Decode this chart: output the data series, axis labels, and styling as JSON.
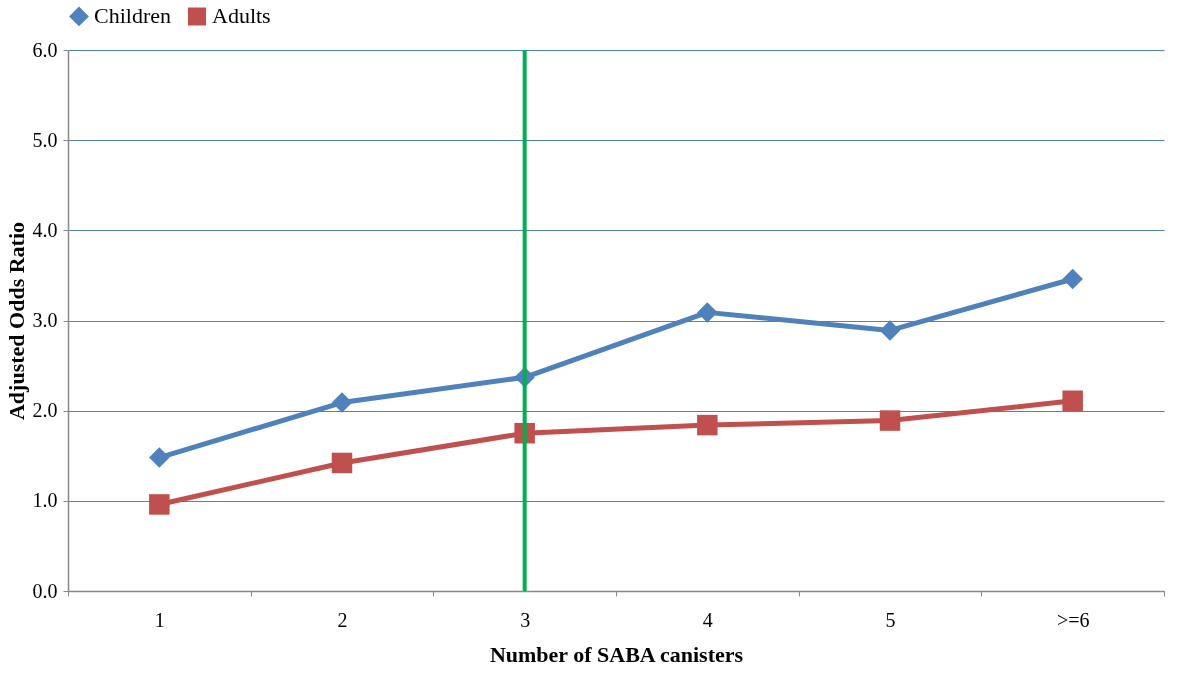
{
  "chart_data": {
    "type": "line",
    "xlabel": "Number of SABA canisters",
    "ylabel": "Adjusted Odds Ratio",
    "categories": [
      "1",
      "2",
      "3",
      "4",
      "5",
      ">=6"
    ],
    "series": [
      {
        "name": "Children",
        "color": "#4f81bd",
        "marker": "diamond",
        "values": [
          1.48,
          2.09,
          2.37,
          3.09,
          2.89,
          3.46
        ]
      },
      {
        "name": "Adults",
        "color": "#c0504d",
        "marker": "square",
        "values": [
          0.96,
          1.42,
          1.75,
          1.84,
          1.89,
          2.11
        ]
      }
    ],
    "ylim": [
      0,
      6
    ],
    "yticks": [
      {
        "value": 0,
        "label": "0.0"
      },
      {
        "value": 1,
        "label": "1.0"
      },
      {
        "value": 2,
        "label": "2.0"
      },
      {
        "value": 3,
        "label": "3.0"
      },
      {
        "value": 4,
        "label": "4.0"
      },
      {
        "value": 5,
        "label": "5.0"
      },
      {
        "value": 6,
        "label": "6.0"
      }
    ],
    "grid": "y",
    "legend": "top",
    "line_style": "solid",
    "ref_lines": [
      {
        "axis": "x",
        "value": "3",
        "color": "#00b050"
      }
    ]
  }
}
